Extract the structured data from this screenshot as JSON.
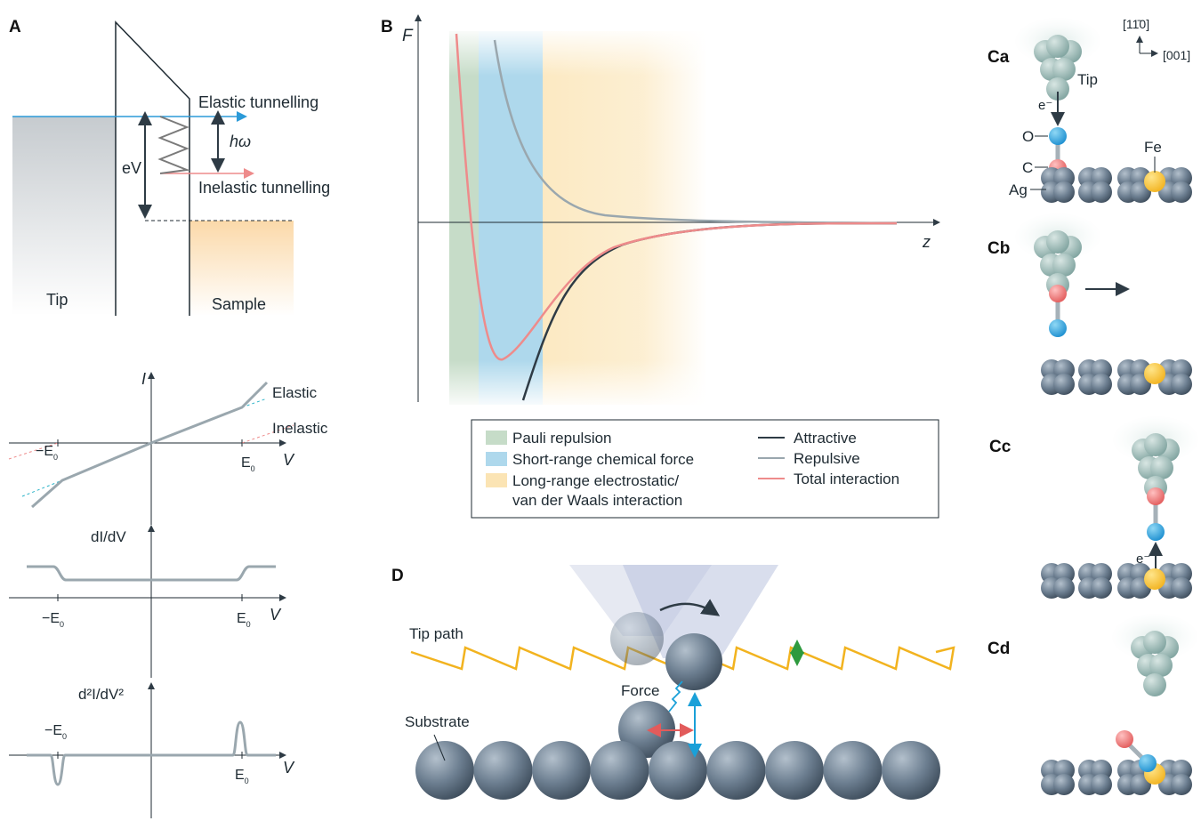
{
  "panels": {
    "A": "A",
    "B": "B",
    "Ca": "Ca",
    "Cb": "Cb",
    "Cc": "Cc",
    "Cd": "Cd",
    "D": "D"
  },
  "panel_a": {
    "elastic": "Elastic tunnelling",
    "inelastic": "Inelastic tunnelling",
    "ev": "eV",
    "hw": "hω",
    "tip": "Tip",
    "sample": "Sample"
  },
  "iv_plots": {
    "i_label": "I",
    "v_label": "V",
    "elastic": "Elastic",
    "inelastic": "Inelastic",
    "neg_e0": "−E",
    "pos_e0": "E",
    "e0_sub": "0",
    "didv_label": "dI/dV",
    "d2idv2_label": "d²I/dV²"
  },
  "panel_b": {
    "f_label": "F",
    "z_label": "z",
    "legend": {
      "pauli": "Pauli repulsion",
      "short": "Short-range chemical force",
      "long1": "Long-range electrostatic/",
      "long2": "van der Waals interaction",
      "attractive": "Attractive",
      "repulsive": "Repulsive",
      "total": "Total interaction"
    },
    "colors": {
      "pauli": "#c6dcc8",
      "short": "#aed8ec",
      "long": "#fbe4b4",
      "attractive": "#2e3b45",
      "repulsive": "#9aa7ae",
      "total": "#ee8b8b"
    }
  },
  "panel_c": {
    "dir1": "[11̄0]",
    "dir2": "[001]",
    "tip": "Tip",
    "electron": "e⁻",
    "o": "O",
    "c": "C",
    "ag": "Ag",
    "fe": "Fe"
  },
  "panel_d": {
    "tip_path": "Tip path",
    "force": "Force",
    "substrate": "Substrate"
  }
}
